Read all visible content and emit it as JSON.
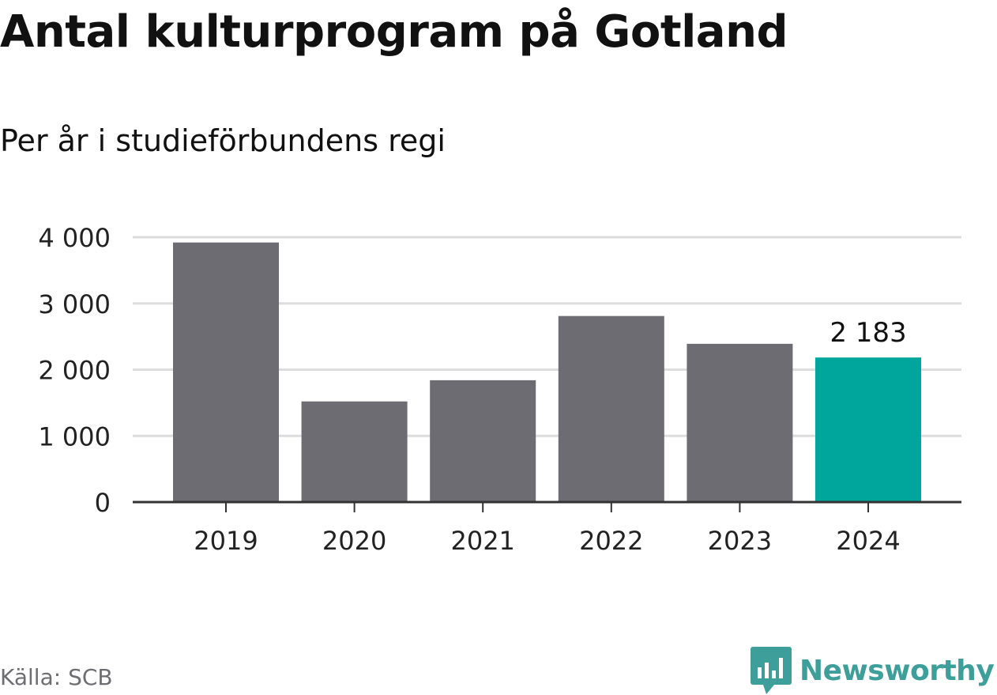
{
  "header": {
    "title": "Antal kulturprogram på Gotland",
    "subtitle": "Per år i studieförbundens regi"
  },
  "footer": {
    "source": "Källa: SCB",
    "brand": "Newsworthy"
  },
  "colors": {
    "bar_default": "#6d6c72",
    "bar_highlight": "#00a59b",
    "gridline": "#dddddd",
    "axis": "#333333",
    "brand": "#3d9e9a"
  },
  "chart_data": {
    "type": "bar",
    "title": "Antal kulturprogram på Gotland",
    "subtitle": "Per år i studieförbundens regi",
    "categories": [
      "2019",
      "2020",
      "2021",
      "2022",
      "2023",
      "2024"
    ],
    "values": [
      3920,
      1520,
      1840,
      2810,
      2390,
      2183
    ],
    "highlight_index": 5,
    "data_labels": [
      {
        "index": 5,
        "text": "2 183"
      }
    ],
    "ylim": [
      0,
      4000
    ],
    "yticks": [
      0,
      1000,
      2000,
      3000,
      4000
    ],
    "ytick_labels": [
      "0",
      "1 000",
      "2 000",
      "3 000",
      "4 000"
    ],
    "xlabel": "",
    "ylabel": "",
    "grid": true,
    "legend": "none"
  }
}
